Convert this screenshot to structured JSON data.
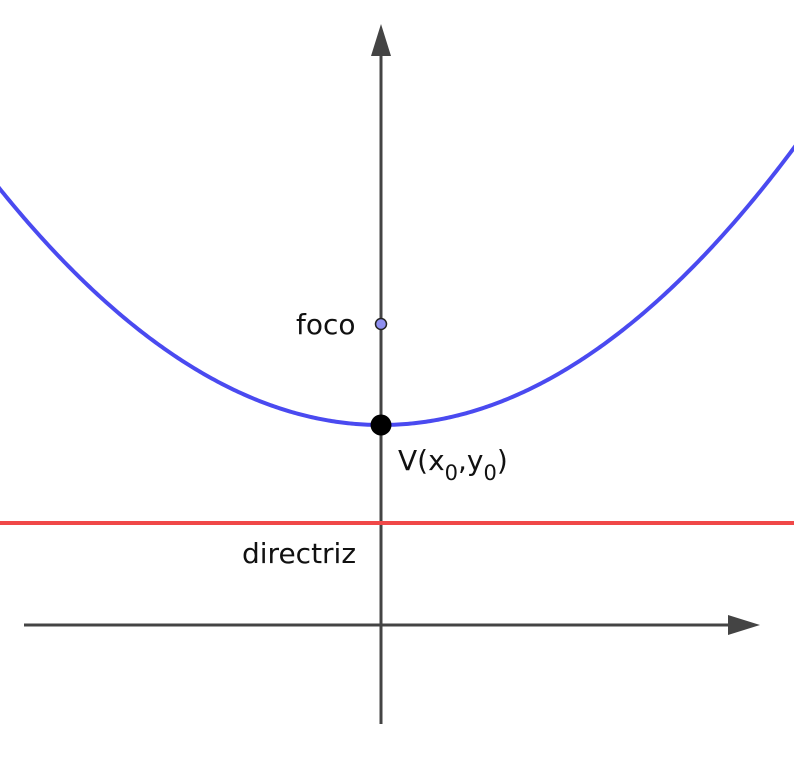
{
  "labels": {
    "focus": "foco",
    "vertex_prefix": "V(x",
    "vertex_sub1": "0",
    "vertex_mid": ",y",
    "vertex_sub2": "0",
    "vertex_suffix": ")",
    "directrix": "directriz"
  },
  "colors": {
    "parabola": "#4a4af0",
    "directrix": "#f04848",
    "axes": "#444444",
    "vertex": "#000000",
    "focus": "#8f8ff0"
  }
}
